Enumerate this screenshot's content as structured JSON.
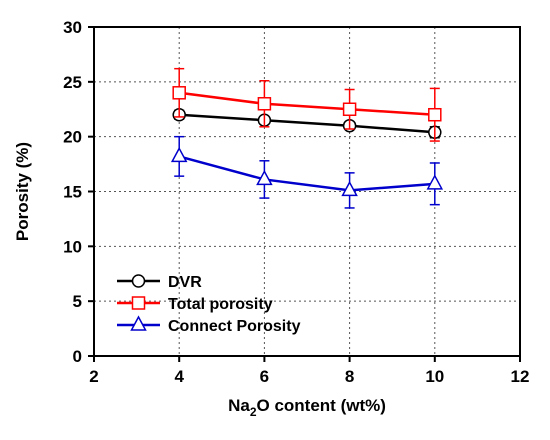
{
  "chart_data": {
    "type": "line",
    "xlabel": {
      "pre": "Na",
      "sub": "2",
      "post": "O content (wt%)"
    },
    "ylabel": "Porosity (%)",
    "xlim": [
      2,
      12
    ],
    "ylim": [
      0,
      30
    ],
    "xticks": [
      2,
      4,
      6,
      8,
      10,
      12
    ],
    "yticks": [
      0,
      5,
      10,
      15,
      20,
      25,
      30
    ],
    "grid": "dotted, at interior ticks",
    "legend_position": "bottom-left",
    "x": [
      4,
      6,
      8,
      10
    ],
    "series": [
      {
        "name": "DVR",
        "color": "#000000",
        "marker": "circle",
        "values": [
          22.0,
          21.5,
          21.0,
          20.4
        ],
        "errors": [
          0.4,
          0.3,
          0.3,
          0.5
        ]
      },
      {
        "name": "Total porosity",
        "color": "#ff0000",
        "marker": "square",
        "values": [
          24.0,
          23.0,
          22.5,
          22.0
        ],
        "errors": [
          2.2,
          2.1,
          1.8,
          2.4
        ]
      },
      {
        "name": "Connect Porosity",
        "color": "#0000cc",
        "marker": "triangle",
        "values": [
          18.2,
          16.1,
          15.1,
          15.7
        ],
        "errors": [
          1.8,
          1.7,
          1.6,
          1.9
        ]
      }
    ]
  }
}
